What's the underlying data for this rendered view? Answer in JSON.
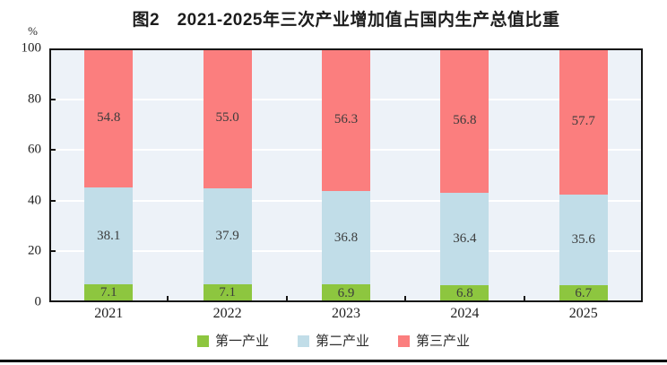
{
  "page": {
    "background": "#ffffff",
    "divider_color": "#000000"
  },
  "chart": {
    "title": "图2　2021-2025年三次产业增加值占国内生产总值比重",
    "unit_label": "%",
    "plot_bg": "#EDF2F8",
    "border_color": "#151515",
    "grid_color": "#ffffff",
    "label_color": "#3c3c3c"
  },
  "chart_data": {
    "type": "bar",
    "stacked": true,
    "title": "图2 2021-2025年三次产业增加值占国内生产总值比重",
    "categories": [
      "2021",
      "2022",
      "2023",
      "2024",
      "2025"
    ],
    "series": [
      {
        "name": "第一产业",
        "color": "#8DC63F",
        "values": [
          7.1,
          7.1,
          6.9,
          6.8,
          6.7
        ],
        "labels": [
          "7.1",
          "7.1",
          "6.9",
          "6.8",
          "6.7"
        ]
      },
      {
        "name": "第二产业",
        "color": "#C1DDE8",
        "values": [
          38.1,
          37.9,
          36.8,
          36.4,
          35.6
        ],
        "labels": [
          "38.1",
          "37.9",
          "36.8",
          "36.4",
          "35.6"
        ]
      },
      {
        "name": "第三产业",
        "color": "#FB7E7E",
        "values": [
          54.8,
          55.0,
          56.3,
          56.8,
          57.7
        ],
        "labels": [
          "54.8",
          "55.0",
          "56.3",
          "56.8",
          "57.7"
        ]
      }
    ],
    "xlabel": "",
    "ylabel": "%",
    "ylim": [
      0,
      100
    ],
    "yticks": [
      0,
      20,
      40,
      60,
      80,
      100
    ],
    "ytick_labels": [
      "0",
      "20",
      "40",
      "60",
      "80",
      "100"
    ],
    "grid": true,
    "legend_position": "bottom"
  }
}
